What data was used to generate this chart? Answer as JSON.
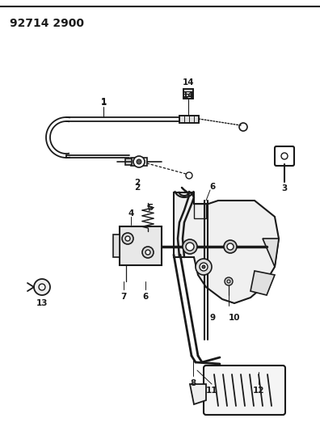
{
  "title": "92714 2900",
  "bg_color": "#ffffff",
  "line_color": "#1a1a1a",
  "title_fontsize": 10,
  "label_fontsize": 7.5,
  "fig_width": 3.96,
  "fig_height": 5.33,
  "dpi": 100
}
